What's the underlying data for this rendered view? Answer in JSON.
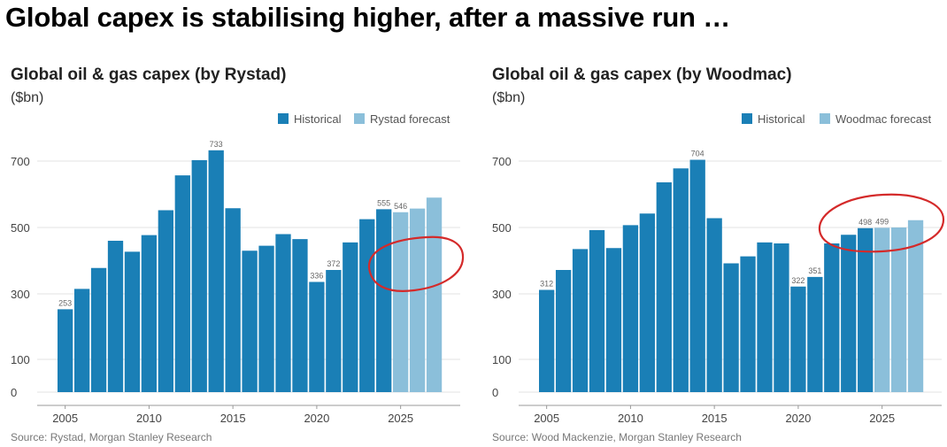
{
  "page": {
    "title": "Global capex is stabilising higher, after a massive run …"
  },
  "colors": {
    "historical": "#1a7fb6",
    "forecast": "#8bbfda",
    "grid": "#e3e3e3",
    "annotation": "#d42a2a"
  },
  "chart_data": [
    {
      "type": "bar",
      "title": "Global oil & gas capex (by Rystad)",
      "unit": "($bn)",
      "source": "Source: Rystad, Morgan Stanley Research",
      "legend": [
        "Historical",
        "Rystad forecast"
      ],
      "x": [
        2005,
        2006,
        2007,
        2008,
        2009,
        2010,
        2011,
        2012,
        2013,
        2014,
        2015,
        2016,
        2017,
        2018,
        2019,
        2020,
        2021,
        2022,
        2023,
        2024,
        2025,
        2026,
        2027
      ],
      "values": [
        253,
        315,
        378,
        460,
        427,
        477,
        552,
        657,
        703,
        733,
        558,
        430,
        445,
        480,
        465,
        336,
        372,
        455,
        525,
        555,
        546,
        557,
        590
      ],
      "forecast_from_index": 20,
      "data_labels": {
        "2005": "253",
        "2014": "733",
        "2020": "336",
        "2021": "372",
        "2024": "555",
        "2025": "546"
      },
      "y_ticks": [
        0,
        100,
        300,
        500,
        700
      ],
      "x_ticks": [
        2005,
        2010,
        2015,
        2020,
        2025
      ],
      "ylim": [
        0,
        760
      ]
    },
    {
      "type": "bar",
      "title": "Global oil & gas capex (by Woodmac)",
      "unit": "($bn)",
      "source": "Source: Wood Mackenzie, Morgan Stanley Research",
      "legend": [
        "Historical",
        "Woodmac forecast"
      ],
      "x": [
        2005,
        2006,
        2007,
        2008,
        2009,
        2010,
        2011,
        2012,
        2013,
        2014,
        2015,
        2016,
        2017,
        2018,
        2019,
        2020,
        2021,
        2022,
        2023,
        2024,
        2025,
        2026,
        2027
      ],
      "values": [
        312,
        372,
        435,
        492,
        438,
        507,
        542,
        636,
        678,
        704,
        528,
        392,
        413,
        455,
        452,
        322,
        351,
        452,
        478,
        498,
        499,
        500,
        522
      ],
      "forecast_from_index": 20,
      "data_labels": {
        "2005": "312",
        "2014": "704",
        "2020": "322",
        "2021": "351",
        "2024": "498",
        "2025": "499"
      },
      "y_ticks": [
        0,
        100,
        300,
        500,
        700
      ],
      "x_ticks": [
        2005,
        2010,
        2015,
        2020,
        2025
      ],
      "ylim": [
        0,
        760
      ]
    }
  ]
}
